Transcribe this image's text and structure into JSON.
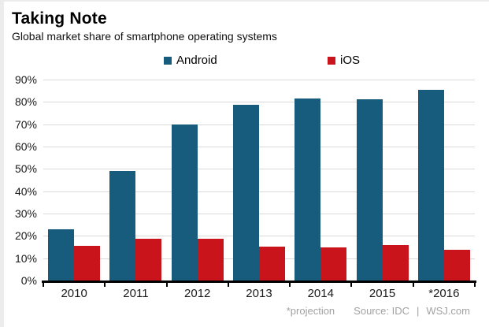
{
  "header": {
    "title": "Taking Note",
    "subtitle": "Global market share of smartphone operating systems"
  },
  "legend": [
    {
      "label": "Android",
      "color": "#175c7c"
    },
    {
      "label": "iOS",
      "color": "#c8141a"
    }
  ],
  "footer": {
    "footnote": "*projection",
    "source": "Source: IDC",
    "divider": "|",
    "site": "WSJ.com"
  },
  "colors": {
    "android": "#175c7c",
    "ios": "#c8141a",
    "gridline": "#d9d9d9",
    "axis": "#000000",
    "footer_text": "#a2a2a2"
  },
  "chart_data": {
    "type": "bar",
    "title": "Taking Note",
    "subtitle": "Global market share of smartphone operating systems",
    "categories": [
      "2010",
      "2011",
      "2012",
      "2013",
      "2014",
      "2015",
      "*2016"
    ],
    "series": [
      {
        "name": "Android",
        "color": "#175c7c",
        "values": [
          23,
          49,
          70,
          78.6,
          81.5,
          81.2,
          85.3
        ]
      },
      {
        "name": "iOS",
        "color": "#c8141a",
        "values": [
          15.6,
          18.8,
          18.7,
          15.1,
          14.8,
          15.8,
          13.7
        ]
      }
    ],
    "xlabel": "",
    "ylabel": "",
    "ylim": [
      0,
      90
    ],
    "ytick_step": 10,
    "ytick_format": "percent",
    "grid": true,
    "legend_position": "top",
    "footnote": "*projection",
    "source": "Source: IDC | WSJ.com"
  }
}
